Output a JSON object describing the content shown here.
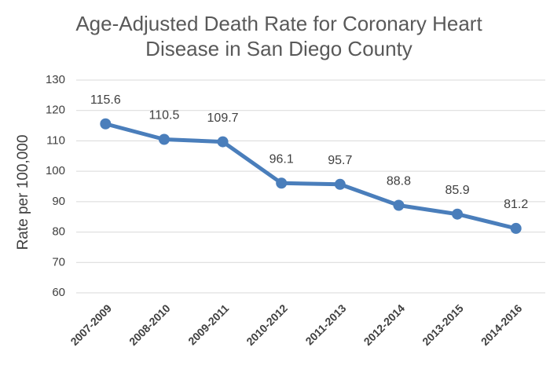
{
  "chart_data": {
    "type": "line",
    "title": "Age-Adjusted Death Rate for Coronary Heart Disease in San Diego County",
    "y_label": "Rate per 100,000",
    "categories": [
      "2007-2009",
      "2008-2010",
      "2009-2011",
      "2010-2012",
      "2011-2013",
      "2012-2014",
      "2013-2015",
      "2014-2016"
    ],
    "series": [
      {
        "name": "Rate",
        "color": "#4a7ebb",
        "values": [
          115.6,
          110.5,
          109.7,
          96.1,
          95.7,
          88.8,
          85.9,
          81.2
        ]
      }
    ],
    "ylim": [
      60,
      130
    ],
    "yticks": [
      60,
      70,
      80,
      90,
      100,
      110,
      120,
      130
    ],
    "grid": true
  }
}
